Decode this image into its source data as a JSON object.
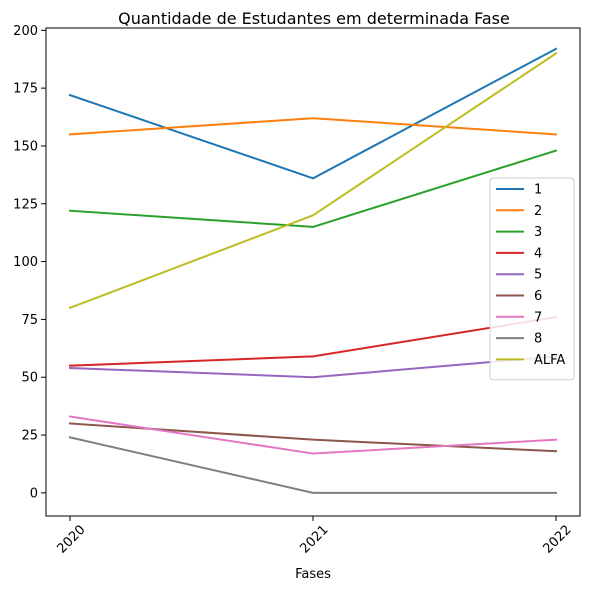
{
  "chart_data": {
    "type": "line",
    "title": "Quantidade de Estudantes em determinada Fase",
    "xlabel": "Fases",
    "ylabel": "",
    "categories": [
      "2020",
      "2021",
      "2022"
    ],
    "ylim": [
      -10,
      201
    ],
    "yticks": [
      0,
      25,
      50,
      75,
      100,
      125,
      150,
      175,
      200
    ],
    "grid": false,
    "legend_position": "right",
    "series": [
      {
        "name": "1",
        "color": "#1f77b4",
        "values": [
          172,
          136,
          192
        ]
      },
      {
        "name": "2",
        "color": "#ff7f0e",
        "values": [
          155,
          162,
          155
        ]
      },
      {
        "name": "3",
        "color": "#2ca02c",
        "values": [
          122,
          115,
          148
        ]
      },
      {
        "name": "4",
        "color": "#d62728",
        "values": [
          55,
          59,
          76
        ]
      },
      {
        "name": "5",
        "color": "#9467bd",
        "values": [
          54,
          50,
          59
        ]
      },
      {
        "name": "6",
        "color": "#8c564b",
        "values": [
          30,
          23,
          18
        ]
      },
      {
        "name": "7",
        "color": "#e377c2",
        "values": [
          33,
          17,
          23
        ]
      },
      {
        "name": "8",
        "color": "#7f7f7f",
        "values": [
          24,
          0,
          0
        ]
      },
      {
        "name": "ALFA",
        "color": "#bcbd22",
        "values": [
          80,
          120,
          190
        ]
      }
    ]
  }
}
